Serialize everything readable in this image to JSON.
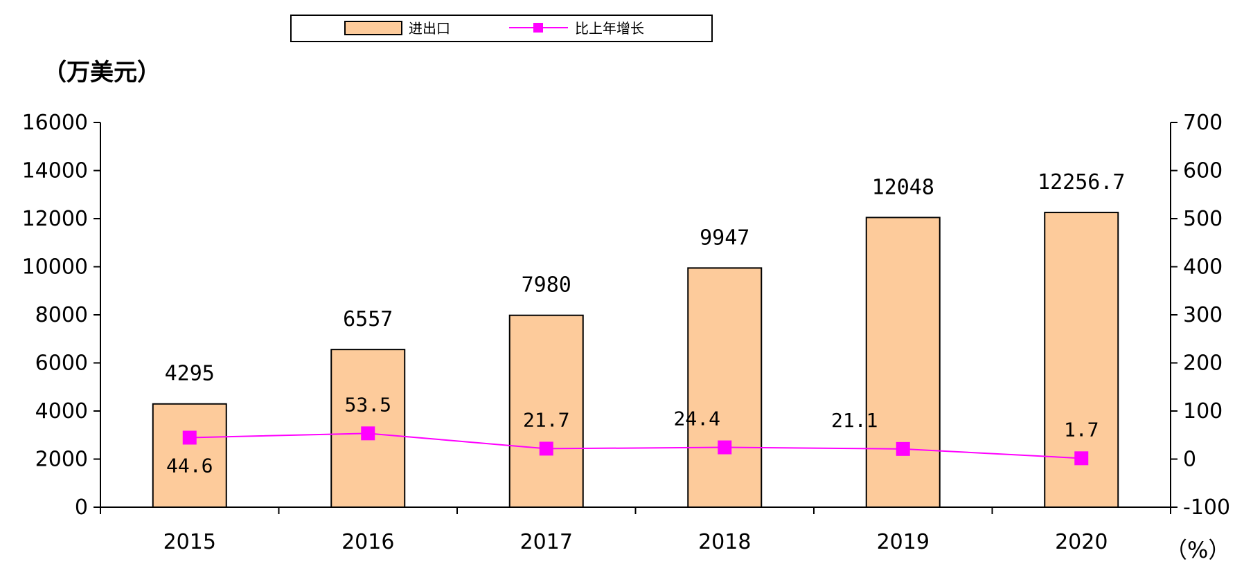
{
  "chart_data": {
    "type": "bar",
    "categories": [
      "2015",
      "2016",
      "2017",
      "2018",
      "2019",
      "2020"
    ],
    "series": [
      {
        "name": "进出口",
        "type": "bar",
        "axis": "left",
        "color": "#FDCB9B",
        "values": [
          4295,
          6557,
          7980,
          9947,
          12048,
          12256.7
        ],
        "labels": [
          "4295",
          "6557",
          "7980",
          "9947",
          "12048",
          "12256.7"
        ]
      },
      {
        "name": "比上年增长",
        "type": "line",
        "axis": "right",
        "color": "#FF00FF",
        "values": [
          44.6,
          53.5,
          21.7,
          24.4,
          21.1,
          1.7
        ],
        "labels": [
          "44.6",
          "53.5",
          "21.7",
          "24.4",
          "21.1",
          "1.7"
        ]
      }
    ],
    "y_left": {
      "unit": "（万美元）",
      "ylim": [
        0,
        16000
      ],
      "ticks": [
        "0",
        "2000",
        "4000",
        "6000",
        "8000",
        "10000",
        "12000",
        "14000",
        "16000"
      ]
    },
    "y_right": {
      "unit": "（%）",
      "ylim": [
        -100,
        700
      ],
      "ticks": [
        "-100",
        "0",
        "100",
        "200",
        "300",
        "400",
        "500",
        "600",
        "700"
      ]
    },
    "grid": false,
    "legend": "top-center"
  }
}
